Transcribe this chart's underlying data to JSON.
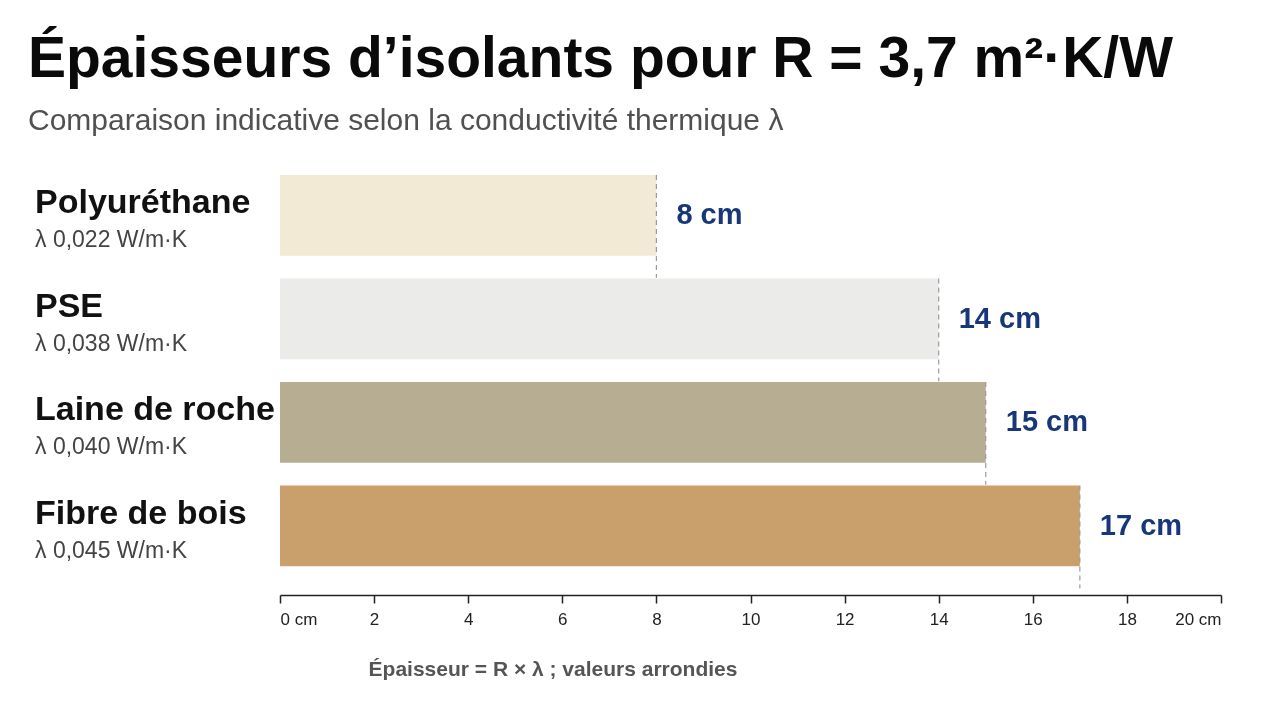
{
  "chart_data": {
    "type": "bar",
    "orientation": "horizontal",
    "title": "Épaisseurs d’isolants pour R = 3,7 m²·K/W",
    "subtitle": "Comparaison indicative selon la conductivité thermique λ",
    "categories": [
      "Polyuréthane\nλ 0,022 W/m·K",
      "PSE\nλ 0,038 W/m·K",
      "Laine de roche\nλ 0,040 W/m·K",
      "Fibre de bois\nλ 0,045 W/m·K"
    ],
    "values": [
      8,
      14,
      15,
      17
    ],
    "colors": [
      "#f3ead6",
      "#ebebea",
      "#b6ad93",
      "#c9a06b"
    ],
    "value_labels": [
      "8 cm",
      "14 cm",
      "15 cm",
      "17 cm"
    ],
    "xlim": [
      0,
      20
    ],
    "xticks": [
      {
        "value": 0,
        "label": "0 cm"
      },
      2,
      4,
      6,
      8,
      10,
      12,
      14,
      16,
      18,
      {
        "value": 20,
        "label": "20 cm"
      }
    ],
    "annotations": [
      "Épaisseur = R × λ ; valeurs arrondies"
    ]
  }
}
